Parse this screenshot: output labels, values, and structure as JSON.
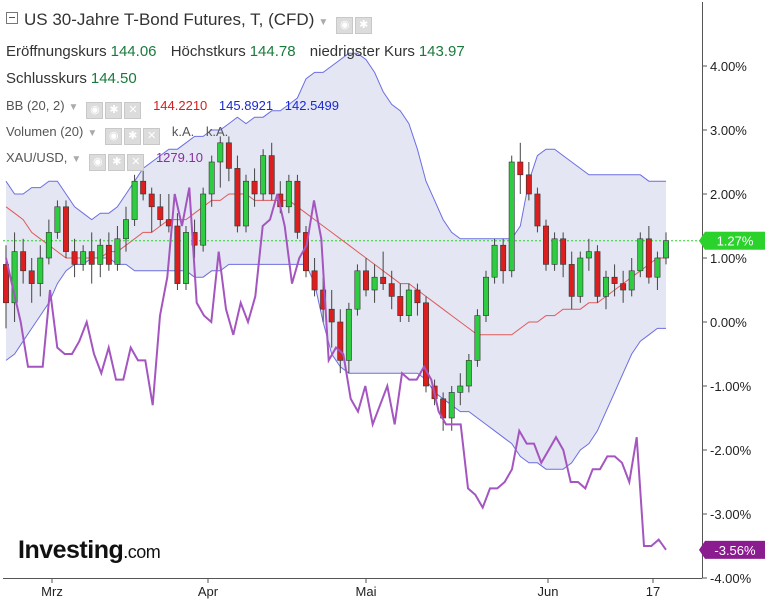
{
  "header": {
    "title": "US 30-Jahre T-Bond Futures, T, (CFD)",
    "open_label": "Eröffnungskurs",
    "open": "144.06",
    "high_label": "Höchstkurs",
    "high": "144.78",
    "low_label": "niedrigster Kurs",
    "low": "143.97",
    "close_label": "Schlusskurs",
    "close": "144.50"
  },
  "indicators": {
    "bb_label": "BB (20, 2)",
    "bb_mid": "144.2210",
    "bb_upper": "145.8921",
    "bb_lower": "142.5499",
    "vol_label": "Volumen (20)",
    "vol_a": "k.A.",
    "vol_b": "k.A.",
    "gold_label": "XAU/USD,",
    "gold_value": "1279.10"
  },
  "logo": {
    "main": "Investing",
    "suffix": ".com"
  },
  "colors": {
    "up": "#2ecc40",
    "down": "#dd1e1e",
    "band_fill": "#e4e6f3",
    "band_line": "#6c6fe0",
    "mid_line": "#e05a5a",
    "gold_line": "#a455c0",
    "last_line": "#2bd22b"
  },
  "chart_data": {
    "type": "line",
    "x_labels": [
      "Mrz",
      "Apr",
      "Mai",
      "Jun",
      "17"
    ],
    "y_axis": {
      "unit": "%",
      "ticks": [
        "4.00%",
        "3.00%",
        "2.00%",
        "1.00%",
        "0.00%",
        "-1.00%",
        "-2.00%",
        "-3.00%",
        "-4.00%"
      ],
      "ylim": [
        -4,
        4.7
      ]
    },
    "last_value_label": "1.27%",
    "gold_last_label": "-3.56%",
    "series": [
      {
        "name": "US 30-Jahre T-Bond Futures",
        "kind": "candles",
        "candles": [
          [
            0.9,
            1.2,
            -0.1,
            0.3
          ],
          [
            0.3,
            1.4,
            0.0,
            1.1
          ],
          [
            1.1,
            1.3,
            0.6,
            0.8
          ],
          [
            0.8,
            1.0,
            0.3,
            0.6
          ],
          [
            0.6,
            1.2,
            0.4,
            1.0
          ],
          [
            1.0,
            1.6,
            0.9,
            1.4
          ],
          [
            1.4,
            1.9,
            1.3,
            1.8
          ],
          [
            1.8,
            1.9,
            1.0,
            1.1
          ],
          [
            1.1,
            1.3,
            0.7,
            0.9
          ],
          [
            0.9,
            1.2,
            0.8,
            1.1
          ],
          [
            1.1,
            1.4,
            0.6,
            0.9
          ],
          [
            0.9,
            1.3,
            0.7,
            1.2
          ],
          [
            1.2,
            1.4,
            0.8,
            0.9
          ],
          [
            0.9,
            1.5,
            0.8,
            1.3
          ],
          [
            1.3,
            1.8,
            1.1,
            1.6
          ],
          [
            1.6,
            2.3,
            1.5,
            2.2
          ],
          [
            2.2,
            2.4,
            1.9,
            2.0
          ],
          [
            2.0,
            2.1,
            1.4,
            1.8
          ],
          [
            1.8,
            2.0,
            1.5,
            1.6
          ],
          [
            1.6,
            2.0,
            1.4,
            1.5
          ],
          [
            1.5,
            1.7,
            0.5,
            0.6
          ],
          [
            0.6,
            1.5,
            0.5,
            1.4
          ],
          [
            1.4,
            1.6,
            1.0,
            1.2
          ],
          [
            1.2,
            2.1,
            1.1,
            2.0
          ],
          [
            2.0,
            2.6,
            1.8,
            2.5
          ],
          [
            2.5,
            2.9,
            2.1,
            2.8
          ],
          [
            2.8,
            2.9,
            2.2,
            2.4
          ],
          [
            2.4,
            2.6,
            1.4,
            1.5
          ],
          [
            1.5,
            2.3,
            1.4,
            2.2
          ],
          [
            2.2,
            2.4,
            1.8,
            2.0
          ],
          [
            2.0,
            2.7,
            1.9,
            2.6
          ],
          [
            2.6,
            2.8,
            1.9,
            2.0
          ],
          [
            2.0,
            2.2,
            1.7,
            1.8
          ],
          [
            1.8,
            2.3,
            1.7,
            2.2
          ],
          [
            2.2,
            2.3,
            1.3,
            1.4
          ],
          [
            1.4,
            1.5,
            0.7,
            0.8
          ],
          [
            0.8,
            1.0,
            0.4,
            0.5
          ],
          [
            0.5,
            0.7,
            0.0,
            0.2
          ],
          [
            0.2,
            0.5,
            -0.4,
            0.0
          ],
          [
            0.0,
            0.2,
            -0.8,
            -0.6
          ],
          [
            -0.6,
            0.3,
            -0.8,
            0.2
          ],
          [
            0.2,
            0.9,
            0.1,
            0.8
          ],
          [
            0.8,
            1.0,
            0.4,
            0.5
          ],
          [
            0.5,
            0.9,
            0.3,
            0.7
          ],
          [
            0.7,
            1.1,
            0.5,
            0.6
          ],
          [
            0.6,
            0.8,
            0.2,
            0.4
          ],
          [
            0.4,
            0.6,
            0.0,
            0.1
          ],
          [
            0.1,
            0.6,
            0.0,
            0.5
          ],
          [
            0.5,
            0.6,
            0.1,
            0.3
          ],
          [
            0.3,
            0.4,
            -1.1,
            -1.0
          ],
          [
            -1.0,
            -0.9,
            -1.3,
            -1.2
          ],
          [
            -1.2,
            -1.1,
            -1.7,
            -1.5
          ],
          [
            -1.5,
            -1.0,
            -1.7,
            -1.1
          ],
          [
            -1.1,
            -0.8,
            -1.3,
            -1.0
          ],
          [
            -1.0,
            -0.5,
            -1.1,
            -0.6
          ],
          [
            -0.6,
            0.2,
            -0.7,
            0.1
          ],
          [
            0.1,
            0.8,
            0.0,
            0.7
          ],
          [
            0.7,
            1.3,
            0.6,
            1.2
          ],
          [
            1.2,
            1.3,
            0.6,
            0.8
          ],
          [
            0.8,
            2.6,
            0.7,
            2.5
          ],
          [
            2.5,
            2.8,
            2.0,
            2.3
          ],
          [
            2.3,
            2.5,
            1.9,
            2.0
          ],
          [
            2.0,
            2.1,
            1.4,
            1.5
          ],
          [
            1.5,
            1.6,
            0.8,
            0.9
          ],
          [
            0.9,
            1.4,
            0.8,
            1.3
          ],
          [
            1.3,
            1.4,
            0.7,
            0.9
          ],
          [
            0.9,
            1.1,
            0.2,
            0.4
          ],
          [
            0.4,
            1.1,
            0.3,
            1.0
          ],
          [
            1.0,
            1.3,
            0.8,
            1.1
          ],
          [
            1.1,
            1.2,
            0.3,
            0.4
          ],
          [
            0.4,
            0.8,
            0.2,
            0.7
          ],
          [
            0.7,
            0.9,
            0.4,
            0.6
          ],
          [
            0.6,
            0.8,
            0.3,
            0.5
          ],
          [
            0.5,
            1.0,
            0.4,
            0.8
          ],
          [
            0.8,
            1.4,
            0.7,
            1.3
          ],
          [
            1.3,
            1.5,
            0.6,
            0.7
          ],
          [
            0.7,
            1.1,
            0.5,
            1.0
          ],
          [
            1.0,
            1.4,
            0.9,
            1.27
          ]
        ]
      },
      {
        "name": "BB (20, 2) upper",
        "kind": "line",
        "values": [
          2.2,
          2.0,
          2.0,
          2.1,
          2.1,
          2.2,
          2.2,
          2.0,
          1.8,
          1.7,
          1.6,
          1.7,
          1.7,
          1.8,
          2.0,
          2.2,
          2.4,
          2.5,
          2.6,
          2.7,
          2.7,
          2.8,
          2.9,
          2.9,
          3.0,
          3.0,
          3.1,
          3.2,
          3.1,
          3.2,
          3.2,
          3.3,
          3.3,
          3.4,
          3.5,
          3.8,
          3.9,
          3.9,
          4.0,
          4.1,
          4.2,
          4.2,
          4.1,
          3.9,
          3.6,
          3.4,
          3.3,
          3.1,
          2.7,
          2.2,
          1.9,
          1.6,
          1.4,
          1.3,
          1.3,
          1.3,
          1.3,
          1.3,
          1.3,
          1.3,
          1.5,
          2.2,
          2.6,
          2.7,
          2.7,
          2.6,
          2.5,
          2.4,
          2.3,
          2.3,
          2.3,
          2.3,
          2.3,
          2.3,
          2.3,
          2.2,
          2.2,
          2.2
        ]
      },
      {
        "name": "BB (20, 2) middle",
        "kind": "line",
        "values": [
          1.8,
          1.7,
          1.6,
          1.4,
          1.3,
          1.2,
          1.1,
          1.0,
          1.0,
          1.0,
          1.0,
          1.0,
          1.1,
          1.1,
          1.2,
          1.3,
          1.4,
          1.4,
          1.5,
          1.6,
          1.6,
          1.6,
          1.7,
          1.8,
          1.9,
          1.9,
          2.0,
          2.0,
          2.0,
          1.9,
          1.9,
          1.9,
          1.9,
          1.9,
          1.8,
          1.7,
          1.6,
          1.5,
          1.4,
          1.3,
          1.2,
          1.1,
          1.0,
          0.9,
          0.8,
          0.7,
          0.6,
          0.6,
          0.5,
          0.4,
          0.3,
          0.2,
          0.1,
          0.0,
          -0.1,
          -0.2,
          -0.2,
          -0.2,
          -0.2,
          -0.2,
          -0.1,
          0.0,
          0.0,
          0.1,
          0.1,
          0.2,
          0.2,
          0.2,
          0.3,
          0.3,
          0.4,
          0.5,
          0.6,
          0.7,
          0.8,
          0.9,
          1.0,
          1.0
        ]
      },
      {
        "name": "BB (20, 2) lower",
        "kind": "line",
        "values": [
          -0.6,
          -0.5,
          -0.3,
          -0.1,
          0.1,
          0.3,
          0.6,
          0.8,
          0.9,
          0.9,
          1.0,
          1.0,
          1.0,
          0.9,
          0.9,
          0.8,
          0.8,
          0.8,
          0.8,
          0.8,
          0.8,
          0.8,
          0.7,
          0.7,
          0.8,
          0.8,
          0.9,
          0.9,
          0.9,
          0.9,
          0.9,
          0.9,
          0.9,
          0.9,
          0.9,
          0.9,
          0.6,
          0.0,
          -0.5,
          -0.7,
          -0.8,
          -0.8,
          -0.8,
          -0.8,
          -0.8,
          -0.8,
          -0.8,
          -0.8,
          -0.8,
          -0.9,
          -1.1,
          -1.2,
          -1.3,
          -1.4,
          -1.4,
          -1.5,
          -1.6,
          -1.7,
          -1.8,
          -1.9,
          -2.1,
          -2.2,
          -2.2,
          -2.3,
          -2.3,
          -2.3,
          -2.2,
          -2.0,
          -1.9,
          -1.7,
          -1.4,
          -1.1,
          -0.8,
          -0.5,
          -0.3,
          -0.2,
          -0.1,
          -0.1
        ]
      },
      {
        "name": "XAU/USD",
        "kind": "line",
        "values": [
          1.0,
          0.5,
          0.0,
          -0.7,
          -0.7,
          -0.7,
          0.5,
          -0.4,
          -0.5,
          -0.5,
          -0.3,
          0.0,
          -0.5,
          -0.8,
          -0.4,
          -0.9,
          -0.9,
          -0.4,
          -0.6,
          -0.6,
          -1.3,
          0.1,
          0.7,
          2.0,
          1.5,
          2.1,
          0.3,
          0.1,
          0.0,
          1.1,
          0.2,
          -0.2,
          0.3,
          0.0,
          0.4,
          1.5,
          1.6,
          2.0,
          1.5,
          0.6,
          1.0,
          1.2,
          1.9,
          1.3,
          -0.6,
          -0.4,
          -0.5,
          -1.2,
          -1.4,
          -1.0,
          -1.6,
          -1.3,
          -1.0,
          -1.6,
          -0.8,
          -0.9,
          -0.9,
          -0.7,
          -0.9,
          -1.4,
          -1.6,
          -1.6,
          -1.6,
          -2.6,
          -2.7,
          -2.9,
          -2.6,
          -2.6,
          -2.5,
          -2.3,
          -1.7,
          -1.9,
          -1.9,
          -2.2,
          -2.0,
          -1.8,
          -2.0,
          -2.5,
          -2.5,
          -2.6,
          -2.3,
          -2.3,
          -2.1,
          -2.1,
          -2.2,
          -2.5,
          -1.8,
          -3.5,
          -3.5,
          -3.4,
          -3.56
        ]
      }
    ]
  }
}
